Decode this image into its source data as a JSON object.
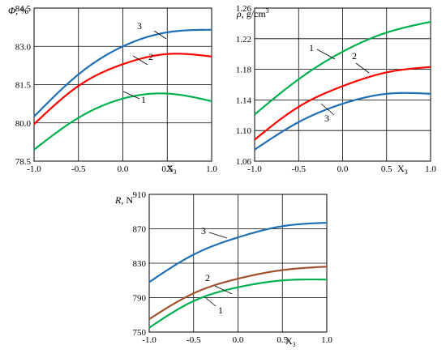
{
  "chart_data": [
    {
      "type": "line",
      "ylabel": "Φ, %",
      "xlabel": "X3",
      "xlim": [
        -1.0,
        1.0
      ],
      "ylim": [
        78.5,
        84.5
      ],
      "x_ticks": [
        -1.0,
        -0.5,
        0.0,
        0.5,
        1.0
      ],
      "x_tick_labels": [
        "-1.0",
        "-0.5",
        "0.0",
        "0.5",
        "1.0"
      ],
      "y_ticks": [
        78.5,
        80.0,
        81.5,
        83.0,
        84.5
      ],
      "y_tick_labels": [
        "78.5",
        "80.0",
        "81.5",
        "83.0",
        "84.5"
      ],
      "grid": true,
      "series": [
        {
          "name": "1",
          "color": "#00b050",
          "x": [
            -1.0,
            -0.5,
            0.0,
            0.5,
            1.0
          ],
          "y": [
            78.95,
            80.2,
            80.95,
            81.15,
            80.85
          ]
        },
        {
          "name": "2",
          "color": "#ff0000",
          "x": [
            -1.0,
            -0.5,
            0.0,
            0.5,
            1.0
          ],
          "y": [
            79.95,
            81.45,
            82.3,
            82.7,
            82.6
          ]
        },
        {
          "name": "3",
          "color": "#1f6fb5",
          "x": [
            -1.0,
            -0.5,
            0.0,
            0.5,
            1.0
          ],
          "y": [
            80.25,
            81.9,
            83.0,
            83.55,
            83.65
          ]
        }
      ]
    },
    {
      "type": "line",
      "ylabel": "ρ, g/cm3",
      "xlabel": "X3",
      "xlim": [
        -1.0,
        1.0
      ],
      "ylim": [
        1.06,
        1.26
      ],
      "x_ticks": [
        -1.0,
        -0.5,
        0.0,
        0.5,
        1.0
      ],
      "x_tick_labels": [
        "-1.0",
        "-0.5",
        "0.0",
        "0.5",
        "1.0"
      ],
      "y_ticks": [
        1.06,
        1.1,
        1.14,
        1.18,
        1.22,
        1.26
      ],
      "y_tick_labels": [
        "1.06",
        "1.10",
        "1.14",
        "1.18",
        "1.22",
        "1.26"
      ],
      "grid": true,
      "series": [
        {
          "name": "1",
          "color": "#00b050",
          "x": [
            -1.0,
            -0.5,
            0.0,
            0.5,
            1.0
          ],
          "y": [
            1.121,
            1.167,
            1.203,
            1.228,
            1.242
          ]
        },
        {
          "name": "2",
          "color": "#ff0000",
          "x": [
            -1.0,
            -0.5,
            0.0,
            0.5,
            1.0
          ],
          "y": [
            1.088,
            1.131,
            1.158,
            1.176,
            1.183
          ]
        },
        {
          "name": "3",
          "color": "#1f6fb5",
          "x": [
            -1.0,
            -0.5,
            0.0,
            0.5,
            1.0
          ],
          "y": [
            1.075,
            1.111,
            1.135,
            1.148,
            1.148
          ]
        }
      ]
    },
    {
      "type": "line",
      "ylabel": "R, N",
      "xlabel": "X3",
      "xlim": [
        -1.0,
        1.0
      ],
      "ylim": [
        750,
        910
      ],
      "x_ticks": [
        -1.0,
        -0.5,
        0.0,
        0.5,
        1.0
      ],
      "x_tick_labels": [
        "-1.0",
        "-0.5",
        "0.0",
        "0.5",
        "1.0"
      ],
      "y_ticks": [
        750,
        790,
        830,
        870,
        910
      ],
      "y_tick_labels": [
        "750",
        "790",
        "830",
        "870",
        "910"
      ],
      "grid": true,
      "series": [
        {
          "name": "1",
          "color": "#00b050",
          "x": [
            -1.0,
            -0.5,
            0.0,
            0.5,
            1.0
          ],
          "y": [
            755,
            786,
            802,
            810,
            811
          ]
        },
        {
          "name": "2",
          "color": "#a0522d",
          "x": [
            -1.0,
            -0.5,
            0.0,
            0.5,
            1.0
          ],
          "y": [
            765,
            795,
            812,
            822,
            826
          ]
        },
        {
          "name": "3",
          "color": "#1f6fb5",
          "x": [
            -1.0,
            -0.5,
            0.0,
            0.5,
            1.0
          ],
          "y": [
            808,
            840,
            860,
            873,
            877
          ]
        }
      ]
    }
  ]
}
